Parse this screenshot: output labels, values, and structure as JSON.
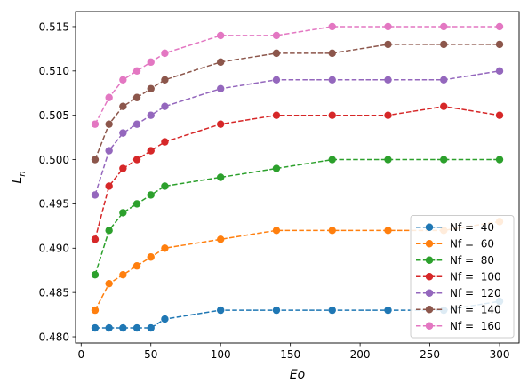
{
  "chart_data": {
    "type": "line",
    "x": [
      10,
      20,
      30,
      40,
      50,
      60,
      100,
      140,
      180,
      220,
      260,
      300
    ],
    "xlabel": "Eo",
    "ylabel_base": "L",
    "ylabel_sub": "n",
    "xlim": [
      -4,
      314
    ],
    "ylim": [
      0.4793,
      0.5167
    ],
    "xticks": [
      0,
      50,
      100,
      150,
      200,
      250,
      300
    ],
    "yticks": [
      0.48,
      0.485,
      0.49,
      0.495,
      0.5,
      0.505,
      0.51,
      0.515
    ],
    "ytick_labels": [
      "0.480",
      "0.485",
      "0.490",
      "0.495",
      "0.500",
      "0.505",
      "0.510",
      "0.515"
    ],
    "grid": false,
    "legend_position": "lower-right",
    "line_style": "dashed",
    "marker": "circle",
    "series": [
      {
        "name": "Nf =  40",
        "color": "#1f77b4",
        "values": [
          0.481,
          0.481,
          0.481,
          0.481,
          0.481,
          0.482,
          0.483,
          0.483,
          0.483,
          0.483,
          0.483,
          0.484
        ]
      },
      {
        "name": "Nf =  60",
        "color": "#ff7f0e",
        "values": [
          0.483,
          0.486,
          0.487,
          0.488,
          0.489,
          0.49,
          0.491,
          0.492,
          0.492,
          0.492,
          0.492,
          0.493
        ]
      },
      {
        "name": "Nf =  80",
        "color": "#2ca02c",
        "values": [
          0.487,
          0.492,
          0.494,
          0.495,
          0.496,
          0.497,
          0.498,
          0.499,
          0.5,
          0.5,
          0.5,
          0.5
        ]
      },
      {
        "name": "Nf =  100",
        "color": "#d62728",
        "values": [
          0.491,
          0.497,
          0.499,
          0.5,
          0.501,
          0.502,
          0.504,
          0.505,
          0.505,
          0.505,
          0.506,
          0.505
        ]
      },
      {
        "name": "Nf =  120",
        "color": "#9467bd",
        "values": [
          0.496,
          0.501,
          0.503,
          0.504,
          0.505,
          0.506,
          0.508,
          0.509,
          0.509,
          0.509,
          0.509,
          0.51
        ]
      },
      {
        "name": "Nf =  140",
        "color": "#8c564b",
        "values": [
          0.5,
          0.504,
          0.506,
          0.507,
          0.508,
          0.509,
          0.511,
          0.512,
          0.512,
          0.513,
          0.513,
          0.513
        ]
      },
      {
        "name": "Nf =  160",
        "color": "#e377c2",
        "values": [
          0.504,
          0.507,
          0.509,
          0.51,
          0.511,
          0.512,
          0.514,
          0.514,
          0.515,
          0.515,
          0.515,
          0.515
        ]
      }
    ]
  }
}
